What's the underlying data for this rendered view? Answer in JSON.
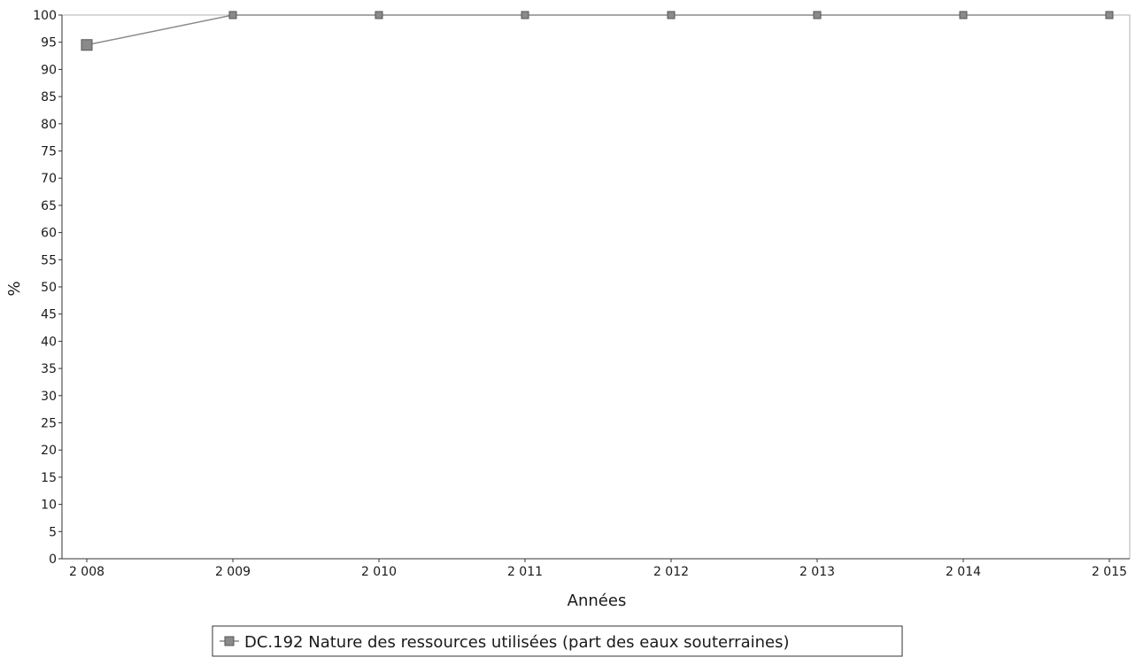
{
  "chart_data": {
    "type": "line",
    "title": "",
    "xlabel": "Années",
    "ylabel": "%",
    "x": [
      "2 008",
      "2 009",
      "2 010",
      "2 011",
      "2 012",
      "2 013",
      "2 014",
      "2 015"
    ],
    "ylim": [
      0,
      100
    ],
    "yticks": [
      0,
      5,
      10,
      15,
      20,
      25,
      30,
      35,
      40,
      45,
      50,
      55,
      60,
      65,
      70,
      75,
      80,
      85,
      90,
      95,
      100
    ],
    "grid": true,
    "legend_position": "bottom-center",
    "series": [
      {
        "name": "DC.192 Nature des ressources utilisées (part des eaux souterraines)",
        "values": [
          94.5,
          100,
          100,
          100,
          100,
          100,
          100,
          100
        ],
        "color": "#8a8a8a"
      }
    ]
  }
}
